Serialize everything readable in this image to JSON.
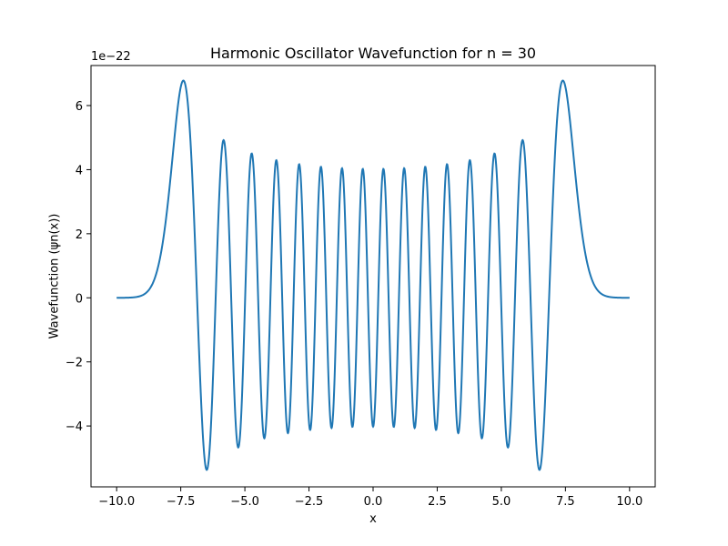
{
  "chart_data": {
    "type": "line",
    "title": "Harmonic Oscillator Wavefunction for n = 30",
    "xlabel": "x",
    "ylabel": "Wavefunction (ψn(x))",
    "y_offset_text": "1e−22",
    "y_scale_exponent": -22,
    "n": 30,
    "xlim": [
      -11.0,
      11.0
    ],
    "ylim": [
      -5.9e-22,
      7.25e-22
    ],
    "x_range": [
      -10.0,
      10.0
    ],
    "peak_abs": 6.78e-22,
    "x_ticks": [
      -10.0,
      -7.5,
      -5.0,
      -2.5,
      0.0,
      2.5,
      5.0,
      7.5,
      10.0
    ],
    "x_tick_labels": [
      "−10.0",
      "−7.5",
      "−5.0",
      "−2.5",
      "0.0",
      "2.5",
      "5.0",
      "7.5",
      "10.0"
    ],
    "y_ticks": [
      -4e-22,
      -2e-22,
      0,
      2e-22,
      4e-22,
      6e-22
    ],
    "y_tick_labels": [
      "−4",
      "−2",
      "0",
      "2",
      "4",
      "6"
    ],
    "grid": false,
    "legend": false,
    "series": [
      {
        "color": "#1f77b4",
        "curve": "hermite-gaussian psi_30(x)"
      }
    ]
  }
}
